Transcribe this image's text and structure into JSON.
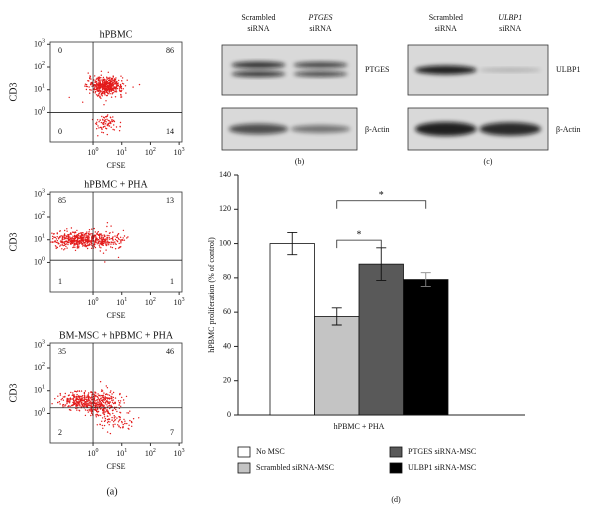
{
  "flow_panels": {
    "tick_base": "10",
    "x_label": "CFSE",
    "y_label": "CD3",
    "xlim": [
      -1.5,
      3.1
    ],
    "ylim": [
      -1.3,
      3.1
    ],
    "xticks": [
      0,
      1,
      2,
      3
    ],
    "yticks": [
      0,
      1,
      2,
      3
    ],
    "caption": "(a)",
    "plots": [
      {
        "title": "hPBMC",
        "gate": [
          0,
          0
        ],
        "quadrants": [
          0,
          86,
          0,
          14
        ]
      },
      {
        "title": "hPBMC + PHA",
        "gate": [
          0,
          0.1
        ],
        "quadrants": [
          85,
          13,
          1,
          1
        ]
      },
      {
        "title": "BM-MSC + hPBMC + PHA",
        "gate": [
          0,
          0.25
        ],
        "quadrants": [
          35,
          46,
          2,
          7
        ]
      }
    ]
  },
  "blots": [
    {
      "lanes": [
        [
          "Scrambled",
          "siRNA"
        ],
        [
          "PTGES",
          "siRNA"
        ]
      ],
      "target": "PTGES",
      "control": "β-Actin",
      "caption": "(b)"
    },
    {
      "lanes": [
        [
          "Scrambled",
          "siRNA"
        ],
        [
          "ULBP1",
          "siRNA"
        ]
      ],
      "target": "ULBP1",
      "control": "β-Actin",
      "caption": "(c)"
    }
  ],
  "chart_data": {
    "type": "bar",
    "y_label": "hPBMC proliferation (% of control)",
    "categories": [
      "hPBMC + PHA"
    ],
    "series": [
      {
        "name": "No MSC",
        "color": "#ffffff",
        "values": [
          100
        ],
        "errors": [
          6.5
        ]
      },
      {
        "name": "Scrambled siRNA-MSC",
        "color": "#c4c4c4",
        "values": [
          57.5
        ],
        "errors": [
          5
        ]
      },
      {
        "name": "PTGES siRNA-MSC",
        "color": "#595959",
        "values": [
          88
        ],
        "errors": [
          9.5
        ]
      },
      {
        "name": "ULBP1 siRNA-MSC",
        "color": "#000000",
        "values": [
          79
        ],
        "errors": [
          4
        ]
      }
    ],
    "ylim": [
      0,
      140
    ],
    "yticks": [
      0,
      20,
      40,
      60,
      80,
      100,
      120,
      140
    ],
    "annotations": [
      {
        "text": "*",
        "from": 1,
        "to": 2,
        "y": 102
      },
      {
        "text": "*",
        "from": 1,
        "to": 3,
        "y": 125
      }
    ],
    "caption": "(d)"
  }
}
